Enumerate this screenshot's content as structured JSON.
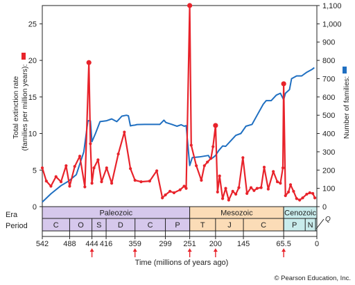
{
  "chart_data": {
    "type": "line",
    "xlabel": "Time (millions of years ago)",
    "ylabel_left": "Total extinction rate\n(families per million years):",
    "ylabel_right": "Number of families:",
    "left_axis": {
      "range": [
        0,
        27.5
      ],
      "ticks": [
        0,
        5,
        10,
        15,
        20,
        25
      ]
    },
    "right_axis": {
      "range": [
        0,
        1100
      ],
      "ticks": [
        0,
        100,
        200,
        300,
        400,
        500,
        600,
        700,
        800,
        900,
        1000,
        1100
      ],
      "tick_labels": [
        "0",
        "100",
        "200",
        "300",
        "400",
        "500",
        "600",
        "700",
        "800",
        "900",
        "1,000",
        "1,100"
      ]
    },
    "x_axis": {
      "range": [
        542,
        0
      ],
      "reversed": true,
      "ticks": [
        542,
        488,
        444,
        416,
        359,
        299,
        251,
        200,
        145,
        65.5,
        0
      ],
      "tick_labels": [
        "542",
        "488",
        "444",
        "416",
        "359",
        "299",
        "251",
        "200",
        "145",
        "65.5",
        "0"
      ],
      "arrow_marks": [
        444,
        359,
        251,
        200,
        65.5
      ]
    },
    "colors": {
      "extinction": "#e8232b",
      "families": "#1f6fc1",
      "paleozoic": "#d6c8ec",
      "mesozoic": "#fbdcb7",
      "cenozoic": "#c9ecec"
    },
    "series": [
      {
        "name": "Total extinction rate",
        "axis": "left",
        "color": "#e8232b",
        "x": [
          542,
          534,
          525,
          515,
          505,
          495,
          488,
          478,
          468,
          458,
          450,
          447,
          444,
          440,
          432,
          425,
          415,
          405,
          392,
          380,
          368,
          359,
          347,
          330,
          316,
          305,
          299,
          290,
          282,
          270,
          262,
          258,
          251,
          248,
          238,
          228,
          222,
          216,
          209,
          205,
          200,
          196,
          192,
          186,
          180,
          174,
          166,
          160,
          154,
          146,
          138,
          130,
          124,
          118,
          110,
          104,
          96,
          86,
          78,
          72,
          67,
          65.5,
          62,
          56,
          52,
          46,
          40,
          34,
          28,
          20,
          14,
          8,
          4
        ],
        "values": [
          5.3,
          3.5,
          2.8,
          4.1,
          3.4,
          5.6,
          2.8,
          5.5,
          6.9,
          2.7,
          19.7,
          8.6,
          3.2,
          5.3,
          6.4,
          3.4,
          5.3,
          3.2,
          7.2,
          10.2,
          5.2,
          3.6,
          3.4,
          3.5,
          4.9,
          1.2,
          1.6,
          2.1,
          1.9,
          2.3,
          2.8,
          2.5,
          27.5,
          8.4,
          5.6,
          3.6,
          5.6,
          6.1,
          6.6,
          8.2,
          11.1,
          2.0,
          4.2,
          1.1,
          2.5,
          0.9,
          2.1,
          1.7,
          2.6,
          6.7,
          1.8,
          2.6,
          2.2,
          2.5,
          2.6,
          5.4,
          2.4,
          4.8,
          3.4,
          3.2,
          5.3,
          16.8,
          1.5,
          2.0,
          3.0,
          2.1,
          1.1,
          0.9,
          1.2,
          1.7,
          1.9,
          1.8,
          1.2
        ]
      },
      {
        "name": "Number of families",
        "axis": "right",
        "color": "#1f6fc1",
        "x": [
          542,
          525,
          505,
          490,
          475,
          460,
          452,
          447,
          444,
          437,
          428,
          415,
          405,
          395,
          390,
          385,
          376,
          372,
          368,
          363,
          359,
          355,
          340,
          320,
          310,
          302,
          298,
          286,
          276,
          268,
          262,
          258,
          251,
          246,
          232,
          214,
          210,
          205,
          200,
          194,
          186,
          180,
          170,
          160,
          150,
          140,
          128,
          118,
          106,
          100,
          90,
          80,
          72,
          65.5,
          62,
          54,
          50,
          40,
          30,
          20,
          10,
          5
        ],
        "values": [
          25,
          70,
          115,
          140,
          175,
          300,
          470,
          470,
          355,
          400,
          465,
          470,
          480,
          465,
          480,
          495,
          500,
          497,
          442,
          445,
          446,
          449,
          450,
          450,
          450,
          473,
          460,
          450,
          440,
          448,
          440,
          443,
          225,
          268,
          272,
          280,
          260,
          268,
          280,
          306,
          332,
          330,
          360,
          390,
          400,
          440,
          450,
          500,
          560,
          580,
          580,
          610,
          620,
          585,
          620,
          640,
          700,
          715,
          715,
          735,
          750,
          760
        ]
      }
    ],
    "eras": [
      {
        "name": "Paleozoic",
        "start": 542,
        "end": 251
      },
      {
        "name": "Mesozoic",
        "start": 251,
        "end": 65.5
      },
      {
        "name": "Cenozoic",
        "start": 65.5,
        "end": 0
      }
    ],
    "periods": [
      {
        "abbr": "C",
        "start": 542,
        "end": 488
      },
      {
        "abbr": "O",
        "start": 488,
        "end": 444
      },
      {
        "abbr": "S",
        "start": 444,
        "end": 416
      },
      {
        "abbr": "D",
        "start": 416,
        "end": 359
      },
      {
        "abbr": "C",
        "start": 359,
        "end": 299
      },
      {
        "abbr": "P",
        "start": 299,
        "end": 251
      },
      {
        "abbr": "T",
        "start": 251,
        "end": 200
      },
      {
        "abbr": "J",
        "start": 200,
        "end": 145
      },
      {
        "abbr": "C",
        "start": 145,
        "end": 65.5
      },
      {
        "abbr": "P",
        "start": 65.5,
        "end": 23
      },
      {
        "abbr": "N",
        "start": 23,
        "end": 2.6
      }
    ],
    "quaternary_label": "Q",
    "row_labels": {
      "era": "Era",
      "period": "Period"
    }
  },
  "copyright": "© Pearson Education, Inc."
}
